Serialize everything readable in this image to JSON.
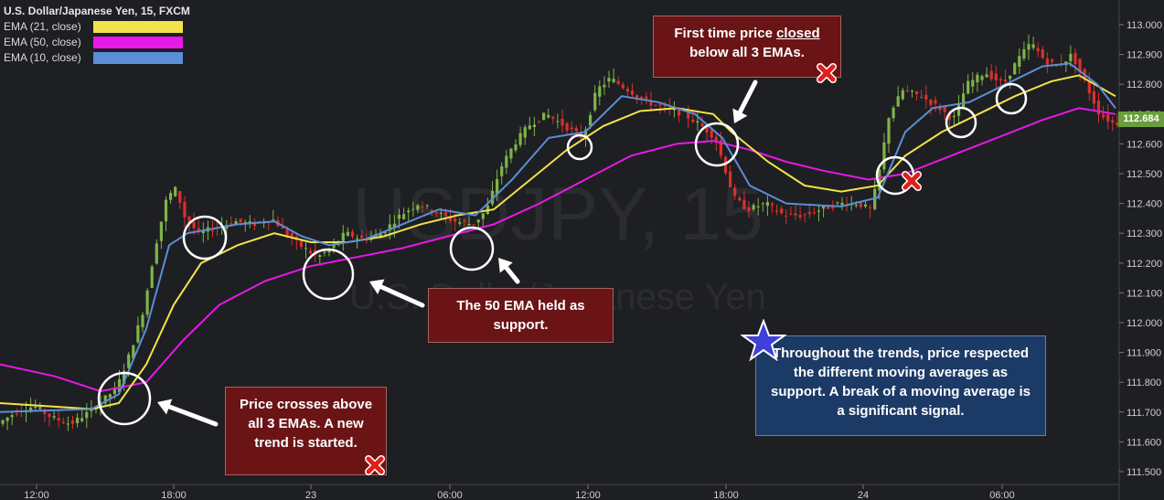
{
  "chart_data": {
    "type": "candlestick",
    "title": "U.S. Dollar/Japanese Yen, 15, FXCM",
    "watermark": {
      "symbol": "USDJPY, 15",
      "name": "U.S. Dollar/Japanese Yen"
    },
    "legend_placement": "top-left",
    "grid": false,
    "colors": {
      "up": "#7fb34a",
      "down": "#d9302c",
      "background": "#1e1f22",
      "axis_text": "#cfcfcf"
    },
    "ylim": [
      111.45,
      113.05
    ],
    "y_ticks": [
      "113.000",
      "112.900",
      "112.800",
      "112.700",
      "112.600",
      "112.500",
      "112.400",
      "112.300",
      "112.200",
      "112.100",
      "112.000",
      "111.900",
      "111.800",
      "111.700",
      "111.600",
      "111.500"
    ],
    "x_ticks": [
      "12:00",
      "18:00",
      "23",
      "06:00",
      "12:00",
      "18:00",
      "24",
      "06:00"
    ],
    "last_price": "112.684",
    "series": [
      {
        "name": "EMA (21, close)",
        "color": "#f2e34a"
      },
      {
        "name": "EMA (50, close)",
        "color": "#e619e6"
      },
      {
        "name": "EMA (10, close)",
        "color": "#5b8ed6"
      }
    ],
    "price_path": [
      [
        0,
        111.66
      ],
      [
        20,
        111.7
      ],
      [
        40,
        111.72
      ],
      [
        60,
        111.68
      ],
      [
        80,
        111.66
      ],
      [
        100,
        111.7
      ],
      [
        115,
        111.74
      ],
      [
        130,
        111.78
      ],
      [
        145,
        111.9
      ],
      [
        160,
        112.05
      ],
      [
        172,
        112.25
      ],
      [
        185,
        112.42
      ],
      [
        195,
        112.45
      ],
      [
        205,
        112.35
      ],
      [
        220,
        112.3
      ],
      [
        240,
        112.32
      ],
      [
        260,
        112.34
      ],
      [
        280,
        112.33
      ],
      [
        300,
        112.35
      ],
      [
        315,
        112.3
      ],
      [
        330,
        112.26
      ],
      [
        350,
        112.22
      ],
      [
        365,
        112.25
      ],
      [
        380,
        112.3
      ],
      [
        400,
        112.28
      ],
      [
        420,
        112.3
      ],
      [
        440,
        112.36
      ],
      [
        460,
        112.4
      ],
      [
        480,
        112.37
      ],
      [
        500,
        112.34
      ],
      [
        520,
        112.33
      ],
      [
        535,
        112.38
      ],
      [
        550,
        112.52
      ],
      [
        565,
        112.6
      ],
      [
        580,
        112.66
      ],
      [
        600,
        112.7
      ],
      [
        620,
        112.66
      ],
      [
        640,
        112.62
      ],
      [
        655,
        112.78
      ],
      [
        670,
        112.82
      ],
      [
        690,
        112.78
      ],
      [
        710,
        112.74
      ],
      [
        730,
        112.72
      ],
      [
        750,
        112.7
      ],
      [
        770,
        112.66
      ],
      [
        785,
        112.62
      ],
      [
        795,
        112.52
      ],
      [
        805,
        112.42
      ],
      [
        820,
        112.38
      ],
      [
        840,
        112.4
      ],
      [
        860,
        112.36
      ],
      [
        880,
        112.36
      ],
      [
        900,
        112.38
      ],
      [
        920,
        112.4
      ],
      [
        940,
        112.4
      ],
      [
        955,
        112.38
      ],
      [
        965,
        112.52
      ],
      [
        975,
        112.7
      ],
      [
        990,
        112.78
      ],
      [
        1010,
        112.76
      ],
      [
        1030,
        112.72
      ],
      [
        1045,
        112.68
      ],
      [
        1060,
        112.8
      ],
      [
        1080,
        112.84
      ],
      [
        1100,
        112.8
      ],
      [
        1115,
        112.88
      ],
      [
        1130,
        112.94
      ],
      [
        1145,
        112.88
      ],
      [
        1160,
        112.86
      ],
      [
        1175,
        112.9
      ],
      [
        1190,
        112.8
      ],
      [
        1205,
        112.7
      ],
      [
        1220,
        112.67
      ]
    ],
    "ema_paths": {
      "ema10": [
        [
          0,
          111.7
        ],
        [
          100,
          111.71
        ],
        [
          130,
          111.76
        ],
        [
          160,
          111.98
        ],
        [
          185,
          112.26
        ],
        [
          205,
          112.3
        ],
        [
          260,
          112.33
        ],
        [
          300,
          112.34
        ],
        [
          330,
          112.29
        ],
        [
          360,
          112.26
        ],
        [
          400,
          112.28
        ],
        [
          440,
          112.33
        ],
        [
          480,
          112.38
        ],
        [
          520,
          112.36
        ],
        [
          560,
          112.48
        ],
        [
          600,
          112.62
        ],
        [
          640,
          112.64
        ],
        [
          680,
          112.76
        ],
        [
          720,
          112.74
        ],
        [
          760,
          112.7
        ],
        [
          790,
          112.62
        ],
        [
          820,
          112.46
        ],
        [
          860,
          112.4
        ],
        [
          920,
          112.39
        ],
        [
          960,
          112.42
        ],
        [
          990,
          112.64
        ],
        [
          1020,
          112.72
        ],
        [
          1060,
          112.74
        ],
        [
          1100,
          112.8
        ],
        [
          1140,
          112.86
        ],
        [
          1170,
          112.87
        ],
        [
          1200,
          112.8
        ],
        [
          1220,
          112.72
        ]
      ],
      "ema21": [
        [
          0,
          111.73
        ],
        [
          100,
          111.71
        ],
        [
          130,
          111.73
        ],
        [
          160,
          111.86
        ],
        [
          190,
          112.06
        ],
        [
          220,
          112.2
        ],
        [
          260,
          112.26
        ],
        [
          300,
          112.3
        ],
        [
          340,
          112.27
        ],
        [
          380,
          112.27
        ],
        [
          420,
          112.29
        ],
        [
          460,
          112.33
        ],
        [
          500,
          112.36
        ],
        [
          540,
          112.38
        ],
        [
          580,
          112.48
        ],
        [
          620,
          112.58
        ],
        [
          660,
          112.66
        ],
        [
          700,
          112.71
        ],
        [
          740,
          112.72
        ],
        [
          780,
          112.7
        ],
        [
          800,
          112.64
        ],
        [
          840,
          112.54
        ],
        [
          880,
          112.46
        ],
        [
          920,
          112.44
        ],
        [
          960,
          112.46
        ],
        [
          990,
          112.56
        ],
        [
          1030,
          112.64
        ],
        [
          1070,
          112.7
        ],
        [
          1110,
          112.76
        ],
        [
          1150,
          112.81
        ],
        [
          1180,
          112.83
        ],
        [
          1220,
          112.76
        ]
      ],
      "ema50": [
        [
          0,
          111.86
        ],
        [
          60,
          111.82
        ],
        [
          110,
          111.77
        ],
        [
          160,
          111.8
        ],
        [
          200,
          111.94
        ],
        [
          240,
          112.06
        ],
        [
          290,
          112.14
        ],
        [
          340,
          112.19
        ],
        [
          390,
          112.22
        ],
        [
          440,
          112.25
        ],
        [
          490,
          112.29
        ],
        [
          540,
          112.33
        ],
        [
          590,
          112.4
        ],
        [
          640,
          112.48
        ],
        [
          690,
          112.56
        ],
        [
          740,
          112.6
        ],
        [
          780,
          112.61
        ],
        [
          820,
          112.58
        ],
        [
          860,
          112.54
        ],
        [
          900,
          112.51
        ],
        [
          950,
          112.48
        ],
        [
          990,
          112.5
        ],
        [
          1040,
          112.56
        ],
        [
          1090,
          112.62
        ],
        [
          1140,
          112.68
        ],
        [
          1180,
          112.72
        ],
        [
          1220,
          112.7
        ]
      ]
    },
    "annotations": {
      "box1": "Price crosses above all 3 EMAs. A new trend is started.",
      "box2": "The 50 EMA held as support.",
      "box3_part1": "First time price",
      "box3_closed": "closed",
      "box3_part2": "below all 3 EMAs.",
      "box4": "Throughout the trends, price respected the different moving averages as support. A break of a moving average is a significant signal."
    }
  }
}
